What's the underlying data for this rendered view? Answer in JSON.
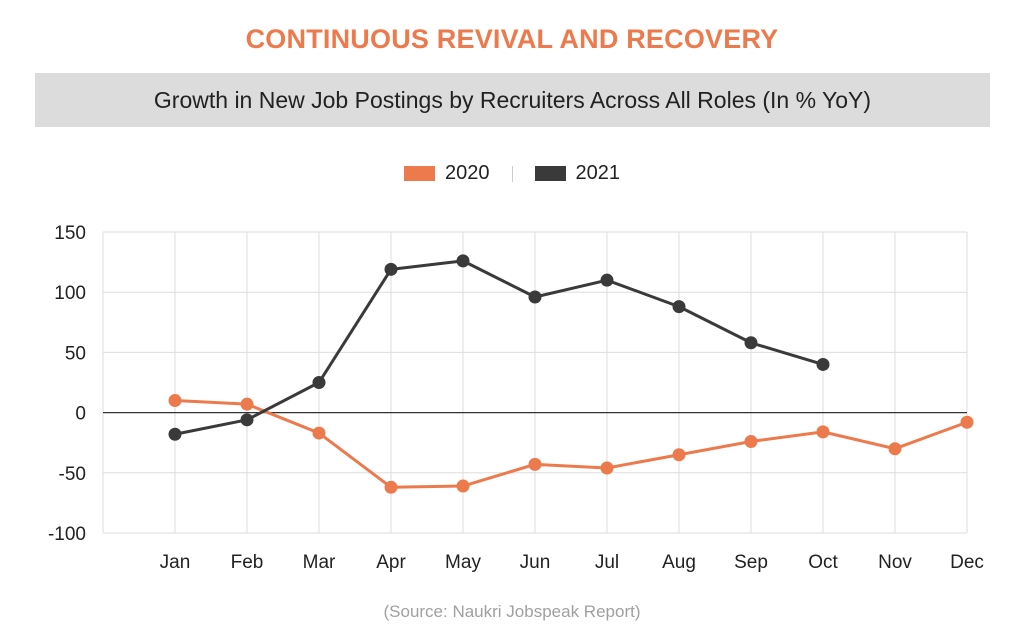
{
  "header": {
    "headline": "CONTINUOUS REVIVAL AND RECOVERY",
    "subtitle": "Growth in New Job Postings by Recruiters Across All Roles (In % YoY)"
  },
  "source": "(Source: Naukri Jobspeak Report)",
  "colors": {
    "accent": "#ec7a4d",
    "series_2020": "#ec7a4d",
    "series_2021": "#3a3a3a",
    "grid": "#dddddd",
    "zero_line": "#333333"
  },
  "chart_data": {
    "type": "line",
    "title": "",
    "xlabel": "",
    "ylabel": "",
    "categories": [
      "Jan",
      "Feb",
      "Mar",
      "Apr",
      "May",
      "Jun",
      "Jul",
      "Aug",
      "Sep",
      "Oct",
      "Nov",
      "Dec"
    ],
    "ylim": [
      -100,
      150
    ],
    "yticks": [
      150,
      100,
      50,
      0,
      -50,
      -100
    ],
    "grid": true,
    "legend_position": "top-center",
    "series": [
      {
        "name": "2020",
        "color": "#ec7a4d",
        "values": [
          10,
          7,
          -17,
          -62,
          -61,
          -43,
          -46,
          -35,
          -24,
          -16,
          -30,
          -8
        ]
      },
      {
        "name": "2021",
        "color": "#3a3a3a",
        "values": [
          -18,
          -6,
          25,
          119,
          126,
          96,
          110,
          88,
          58,
          40,
          null,
          null
        ]
      }
    ]
  }
}
